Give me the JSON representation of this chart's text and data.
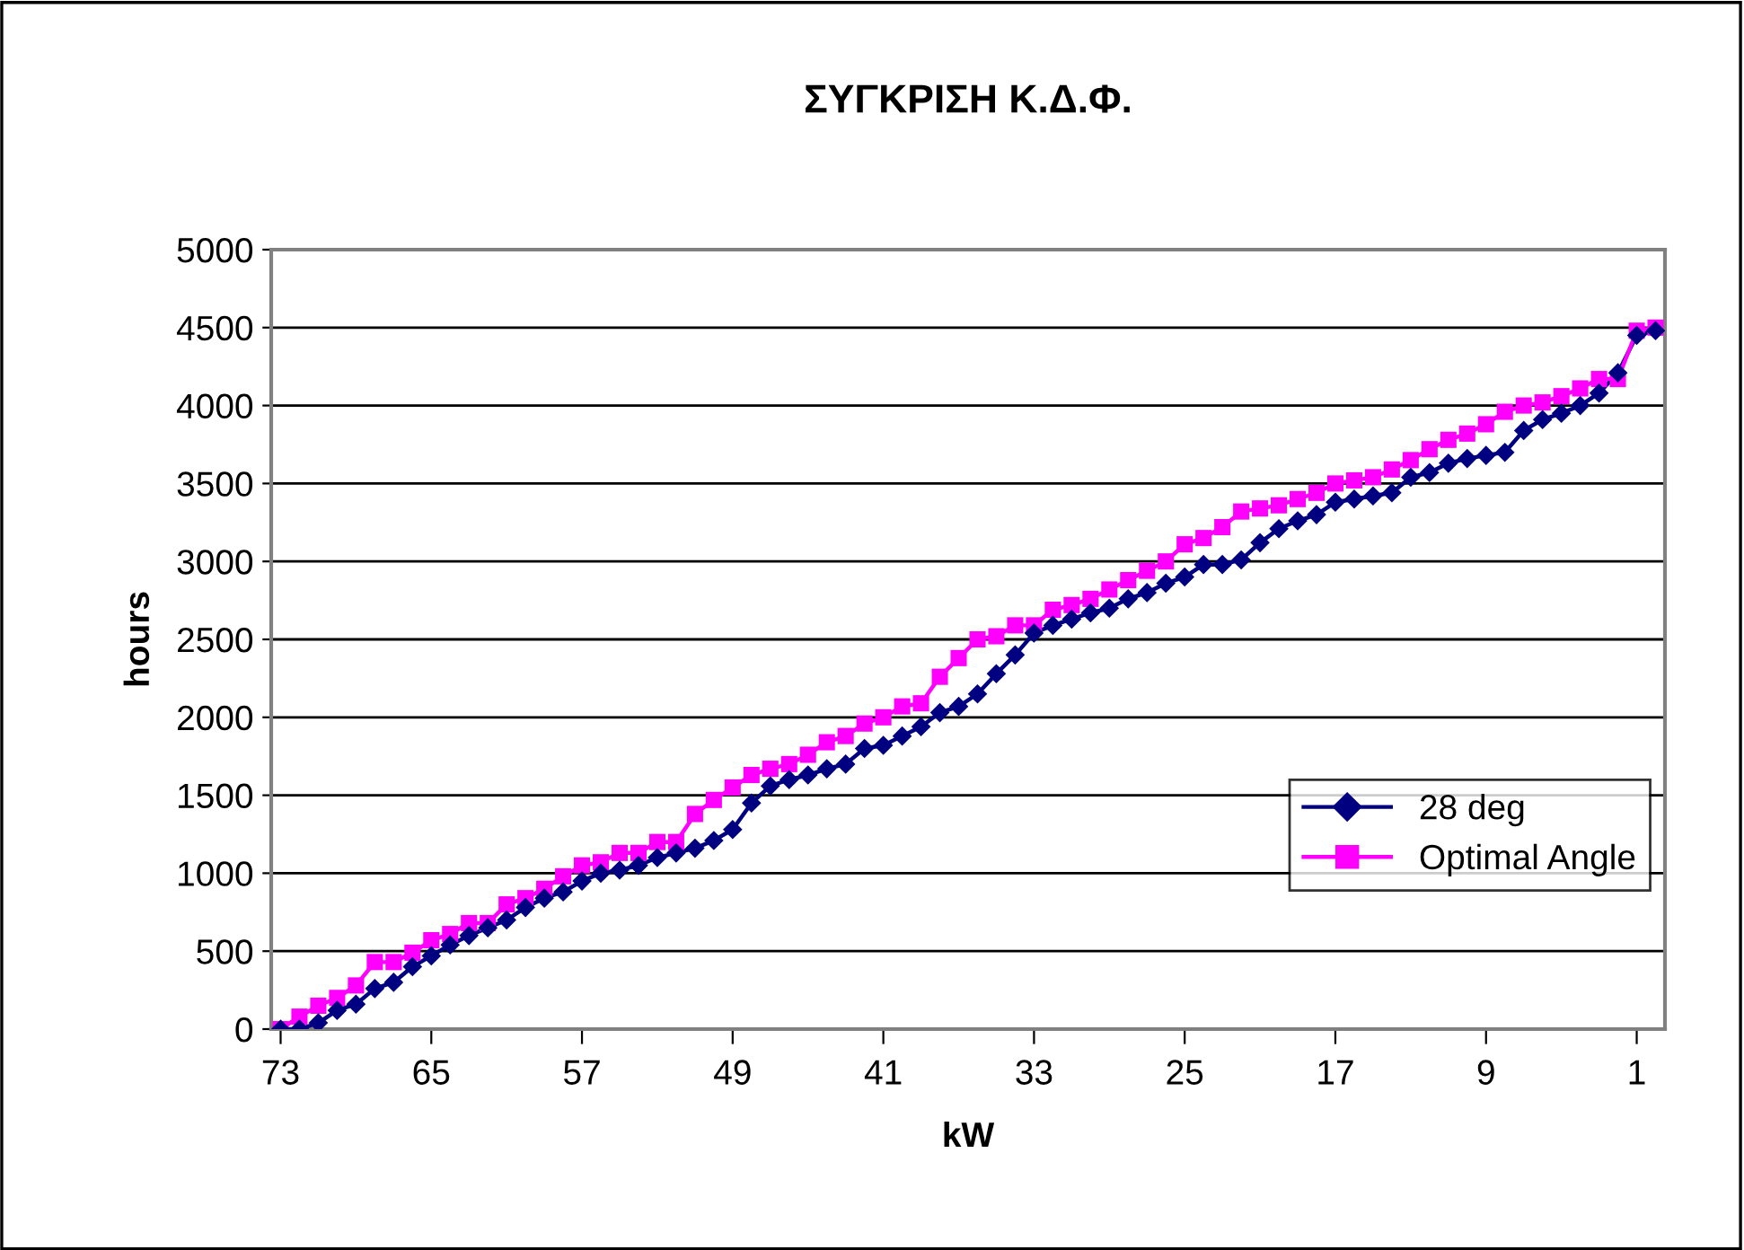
{
  "chart_data": {
    "type": "line",
    "title": "ΣΥΓΚΡΙΣΗ Κ.Δ.Φ.",
    "xlabel": "kW",
    "ylabel": "hours",
    "categories": [
      "73",
      null,
      null,
      null,
      null,
      null,
      null,
      null,
      "65",
      null,
      null,
      null,
      null,
      null,
      null,
      null,
      "57",
      null,
      null,
      null,
      null,
      null,
      null,
      null,
      "49",
      null,
      null,
      null,
      null,
      null,
      null,
      null,
      "41",
      null,
      null,
      null,
      null,
      null,
      null,
      null,
      "33",
      null,
      null,
      null,
      null,
      null,
      null,
      null,
      "25",
      null,
      null,
      null,
      null,
      null,
      null,
      null,
      "17",
      null,
      null,
      null,
      null,
      null,
      null,
      null,
      "9",
      null,
      null,
      null,
      null,
      null,
      null,
      null,
      "1",
      null
    ],
    "series": [
      {
        "name": "28 deg",
        "color": "#000080",
        "marker": "diamond",
        "values": [
          0,
          0,
          40,
          120,
          160,
          260,
          300,
          400,
          470,
          540,
          600,
          650,
          700,
          780,
          840,
          880,
          950,
          1000,
          1020,
          1050,
          1100,
          1130,
          1160,
          1210,
          1280,
          1450,
          1560,
          1600,
          1630,
          1670,
          1700,
          1800,
          1820,
          1880,
          1940,
          2030,
          2070,
          2150,
          2280,
          2400,
          2540,
          2590,
          2630,
          2670,
          2700,
          2760,
          2800,
          2860,
          2900,
          2980,
          2980,
          3010,
          3120,
          3210,
          3260,
          3300,
          3380,
          3400,
          3420,
          3440,
          3540,
          3570,
          3630,
          3660,
          3680,
          3700,
          3840,
          3910,
          3950,
          4000,
          4080,
          4210,
          4450,
          4480
        ]
      },
      {
        "name": "Optimal Angle",
        "color": "#ff00ff",
        "marker": "square",
        "values": [
          0,
          80,
          150,
          200,
          280,
          430,
          430,
          490,
          570,
          610,
          680,
          680,
          800,
          840,
          900,
          980,
          1050,
          1070,
          1130,
          1130,
          1200,
          1200,
          1380,
          1470,
          1550,
          1630,
          1670,
          1700,
          1760,
          1840,
          1880,
          1960,
          2000,
          2070,
          2090,
          2260,
          2380,
          2500,
          2520,
          2590,
          2590,
          2690,
          2720,
          2760,
          2820,
          2880,
          2940,
          3000,
          3110,
          3150,
          3220,
          3320,
          3340,
          3360,
          3400,
          3440,
          3500,
          3520,
          3540,
          3590,
          3650,
          3720,
          3780,
          3820,
          3880,
          3960,
          4000,
          4020,
          4060,
          4110,
          4170,
          4170,
          4480,
          4500
        ]
      }
    ],
    "ylim": [
      0,
      5000
    ],
    "yticks": [
      0,
      500,
      1000,
      1500,
      2000,
      2500,
      3000,
      3500,
      4000,
      4500,
      5000
    ],
    "grid": "y",
    "legend": "right",
    "line_style": "solid"
  }
}
